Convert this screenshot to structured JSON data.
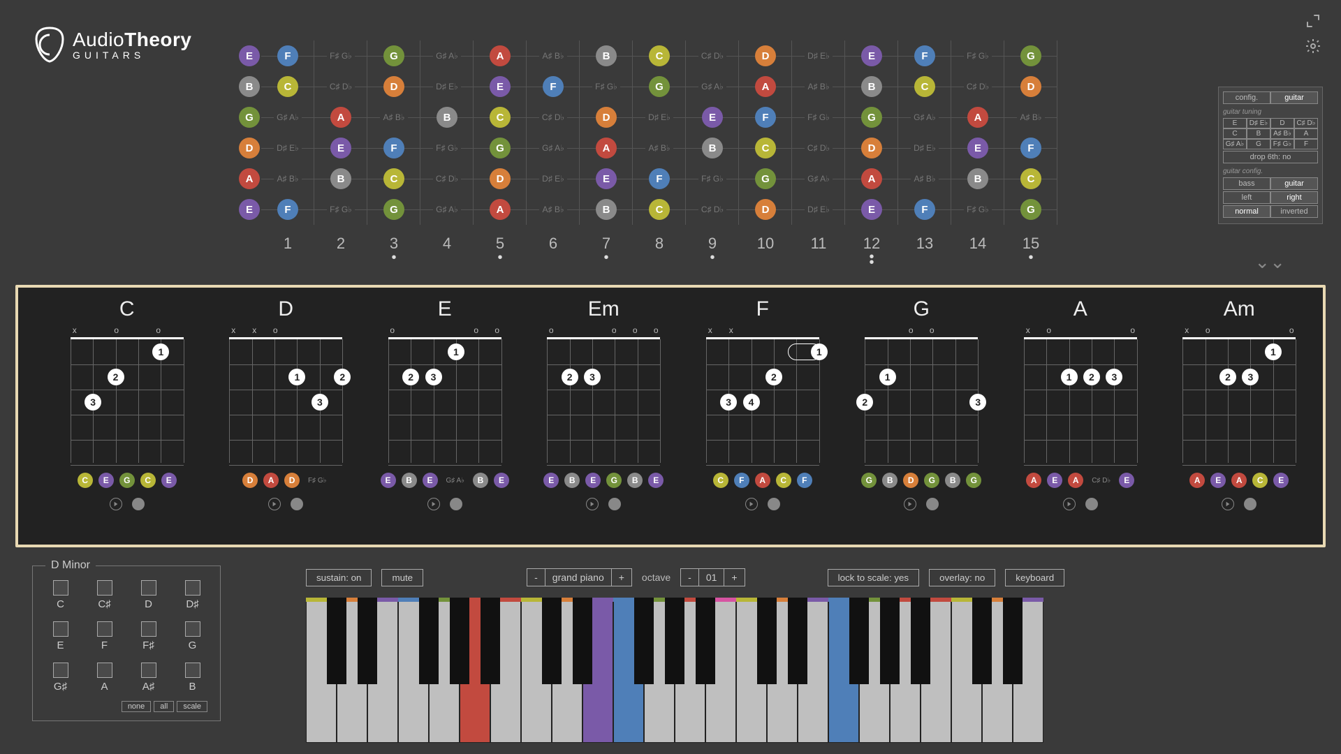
{
  "logo": {
    "line1_a": "Audio",
    "line1_b": "Theory",
    "line2": "GUITARS"
  },
  "noteColors": {
    "C": "#b8b637",
    "D": "#d77f3a",
    "E": "#7a5aa8",
    "F": "#4f7fb8",
    "G": "#73923b",
    "A": "#c24a3f",
    "B": "#8a8a8a"
  },
  "accidentalText": {
    "C#": "C♯ D♭",
    "D#": "D♯ E♭",
    "F#": "F♯ G♭",
    "G#": "G♯ A♭",
    "A#": "A♯ B♭"
  },
  "fretboard": {
    "fretCount": 15,
    "strings": [
      {
        "open": "E",
        "notes": [
          "F",
          "F#",
          "G",
          "G#",
          "A",
          "A#",
          "B",
          "C",
          "C#",
          "D",
          "D#",
          "E",
          "F",
          "F#",
          "G"
        ]
      },
      {
        "open": "B",
        "notes": [
          "C",
          "C#",
          "D",
          "D#",
          "E",
          "F",
          "F#",
          "G",
          "G#",
          "A",
          "A#",
          "B",
          "C",
          "C#",
          "D"
        ]
      },
      {
        "open": "G",
        "notes": [
          "G#",
          "A",
          "A#",
          "B",
          "C",
          "C#",
          "D",
          "D#",
          "E",
          "F",
          "F#",
          "G",
          "G#",
          "A",
          "A#"
        ]
      },
      {
        "open": "D",
        "notes": [
          "D#",
          "E",
          "F",
          "F#",
          "G",
          "G#",
          "A",
          "A#",
          "B",
          "C",
          "C#",
          "D",
          "D#",
          "E",
          "F"
        ]
      },
      {
        "open": "A",
        "notes": [
          "A#",
          "B",
          "C",
          "C#",
          "D",
          "D#",
          "E",
          "F",
          "F#",
          "G",
          "G#",
          "A",
          "A#",
          "B",
          "C"
        ]
      },
      {
        "open": "E",
        "notes": [
          "F",
          "F#",
          "G",
          "G#",
          "A",
          "A#",
          "B",
          "C",
          "C#",
          "D",
          "D#",
          "E",
          "F",
          "F#",
          "G"
        ]
      }
    ],
    "markers": {
      "3": "•",
      "5": "•",
      "7": "•",
      "9": "•",
      "12": "••",
      "15": "•"
    }
  },
  "cfg": {
    "tabs": [
      "config.",
      "guitar"
    ],
    "tabs_active": 1,
    "hdr_tuning": "guitar tuning",
    "tuningRows": [
      [
        "E",
        "D♯ E♭",
        "D",
        "C♯ D♭"
      ],
      [
        "C",
        "B",
        "A♯ B♭",
        "A"
      ],
      [
        "G♯ A♭",
        "G",
        "F♯ G♭",
        "F"
      ]
    ],
    "drop": "drop 6th: no",
    "hdr_cfg": "guitar config.",
    "pairs": [
      [
        "bass",
        "guitar",
        1
      ],
      [
        "left",
        "right",
        1
      ],
      [
        "normal",
        "inverted",
        0
      ]
    ]
  },
  "chords": [
    {
      "name": "C",
      "open": [
        "x",
        "",
        "o",
        "",
        "o",
        ""
      ],
      "fingers": [
        {
          "f": 1,
          "s": 1,
          "fr": 1
        },
        {
          "f": 2,
          "s": 3,
          "fr": 2
        },
        {
          "f": 3,
          "s": 4,
          "fr": 3
        }
      ],
      "notes": [
        "C",
        "E",
        "G",
        "C",
        "E"
      ]
    },
    {
      "name": "D",
      "open": [
        "x",
        "x",
        "o",
        "",
        "",
        ""
      ],
      "fingers": [
        {
          "f": 1,
          "s": 2,
          "fr": 2
        },
        {
          "f": 2,
          "s": 0,
          "fr": 2
        },
        {
          "f": 3,
          "s": 1,
          "fr": 3
        }
      ],
      "notes": [
        "D",
        "A",
        "D",
        "F#"
      ]
    },
    {
      "name": "E",
      "open": [
        "o",
        "",
        "",
        "",
        "o",
        "o"
      ],
      "fingers": [
        {
          "f": 1,
          "s": 2,
          "fr": 1
        },
        {
          "f": 2,
          "s": 4,
          "fr": 2
        },
        {
          "f": 3,
          "s": 3,
          "fr": 2
        }
      ],
      "notes": [
        "E",
        "B",
        "E",
        "G#",
        "B",
        "E"
      ]
    },
    {
      "name": "Em",
      "open": [
        "o",
        "",
        "",
        "o",
        "o",
        "o"
      ],
      "fingers": [
        {
          "f": 2,
          "s": 4,
          "fr": 2
        },
        {
          "f": 3,
          "s": 3,
          "fr": 2
        }
      ],
      "notes": [
        "E",
        "B",
        "E",
        "G",
        "B",
        "E"
      ]
    },
    {
      "name": "F",
      "open": [
        "x",
        "x",
        "",
        "",
        "",
        ""
      ],
      "fingers": [
        {
          "f": 1,
          "s": 0,
          "fr": 1,
          "barreTo": 1
        },
        {
          "f": 2,
          "s": 2,
          "fr": 2
        },
        {
          "f": 3,
          "s": 4,
          "fr": 3
        },
        {
          "f": 4,
          "s": 3,
          "fr": 3
        }
      ],
      "notes": [
        "C",
        "F",
        "A",
        "C",
        "F"
      ]
    },
    {
      "name": "G",
      "open": [
        "",
        "",
        "o",
        "o",
        "",
        ""
      ],
      "fingers": [
        {
          "f": 1,
          "s": 4,
          "fr": 2
        },
        {
          "f": 2,
          "s": 5,
          "fr": 3
        },
        {
          "f": 3,
          "s": 0,
          "fr": 3
        }
      ],
      "notes": [
        "G",
        "B",
        "D",
        "G",
        "B",
        "G"
      ]
    },
    {
      "name": "A",
      "open": [
        "x",
        "o",
        "",
        "",
        "",
        "o"
      ],
      "fingers": [
        {
          "f": 1,
          "s": 3,
          "fr": 2
        },
        {
          "f": 2,
          "s": 2,
          "fr": 2
        },
        {
          "f": 3,
          "s": 1,
          "fr": 2
        }
      ],
      "notes": [
        "A",
        "E",
        "A",
        "C#",
        "E"
      ]
    },
    {
      "name": "Am",
      "open": [
        "x",
        "o",
        "",
        "",
        "",
        "o"
      ],
      "fingers": [
        {
          "f": 1,
          "s": 1,
          "fr": 1
        },
        {
          "f": 2,
          "s": 3,
          "fr": 2
        },
        {
          "f": 3,
          "s": 2,
          "fr": 2
        }
      ],
      "notes": [
        "A",
        "E",
        "A",
        "C",
        "E"
      ]
    }
  ],
  "keySelector": {
    "title": "D Minor",
    "all": [
      "C",
      "C♯",
      "D",
      "D♯",
      "E",
      "F",
      "F♯",
      "G",
      "G♯",
      "A",
      "A♯",
      "B"
    ],
    "buttons": [
      "none",
      "all",
      "scale"
    ]
  },
  "bottombar": {
    "sustain": "sustain: on",
    "mute": "mute",
    "instr_minus": "-",
    "instr": "grand piano",
    "instr_plus": "+",
    "oct_label": "octave",
    "oct_minus": "-",
    "oct_val": "01",
    "oct_plus": "+",
    "lock": "lock to scale: yes",
    "overlay": "overlay: no",
    "keyboard": "keyboard"
  },
  "piano": {
    "whites": 24,
    "pattern": [
      "C",
      "D",
      "E",
      "F",
      "G",
      "A",
      "B"
    ],
    "colored": {
      "5": true,
      "9": true,
      "10": true,
      "17": true
    },
    "topBars": {
      "0": "#b8b637",
      "1": "#d77f3a",
      "2": "#7a5aa8",
      "3": "#4f7fb8",
      "4": "#73923b",
      "5": "#c24a3f",
      "6": "#c24a3f",
      "7": "#b8b637",
      "8": "#d77f3a",
      "9": "#7a5aa8",
      "10": "#4f7fb8",
      "11": "#73923b",
      "12": "#c24a3f",
      "13": "#d754a2",
      "14": "#b8b637",
      "15": "#d77f3a",
      "16": "#7a5aa8",
      "17": "#4f7fb8",
      "18": "#73923b",
      "19": "#c24a3f",
      "20": "#c24a3f",
      "21": "#b8b637",
      "22": "#d77f3a",
      "23": "#7a5aa8"
    }
  }
}
